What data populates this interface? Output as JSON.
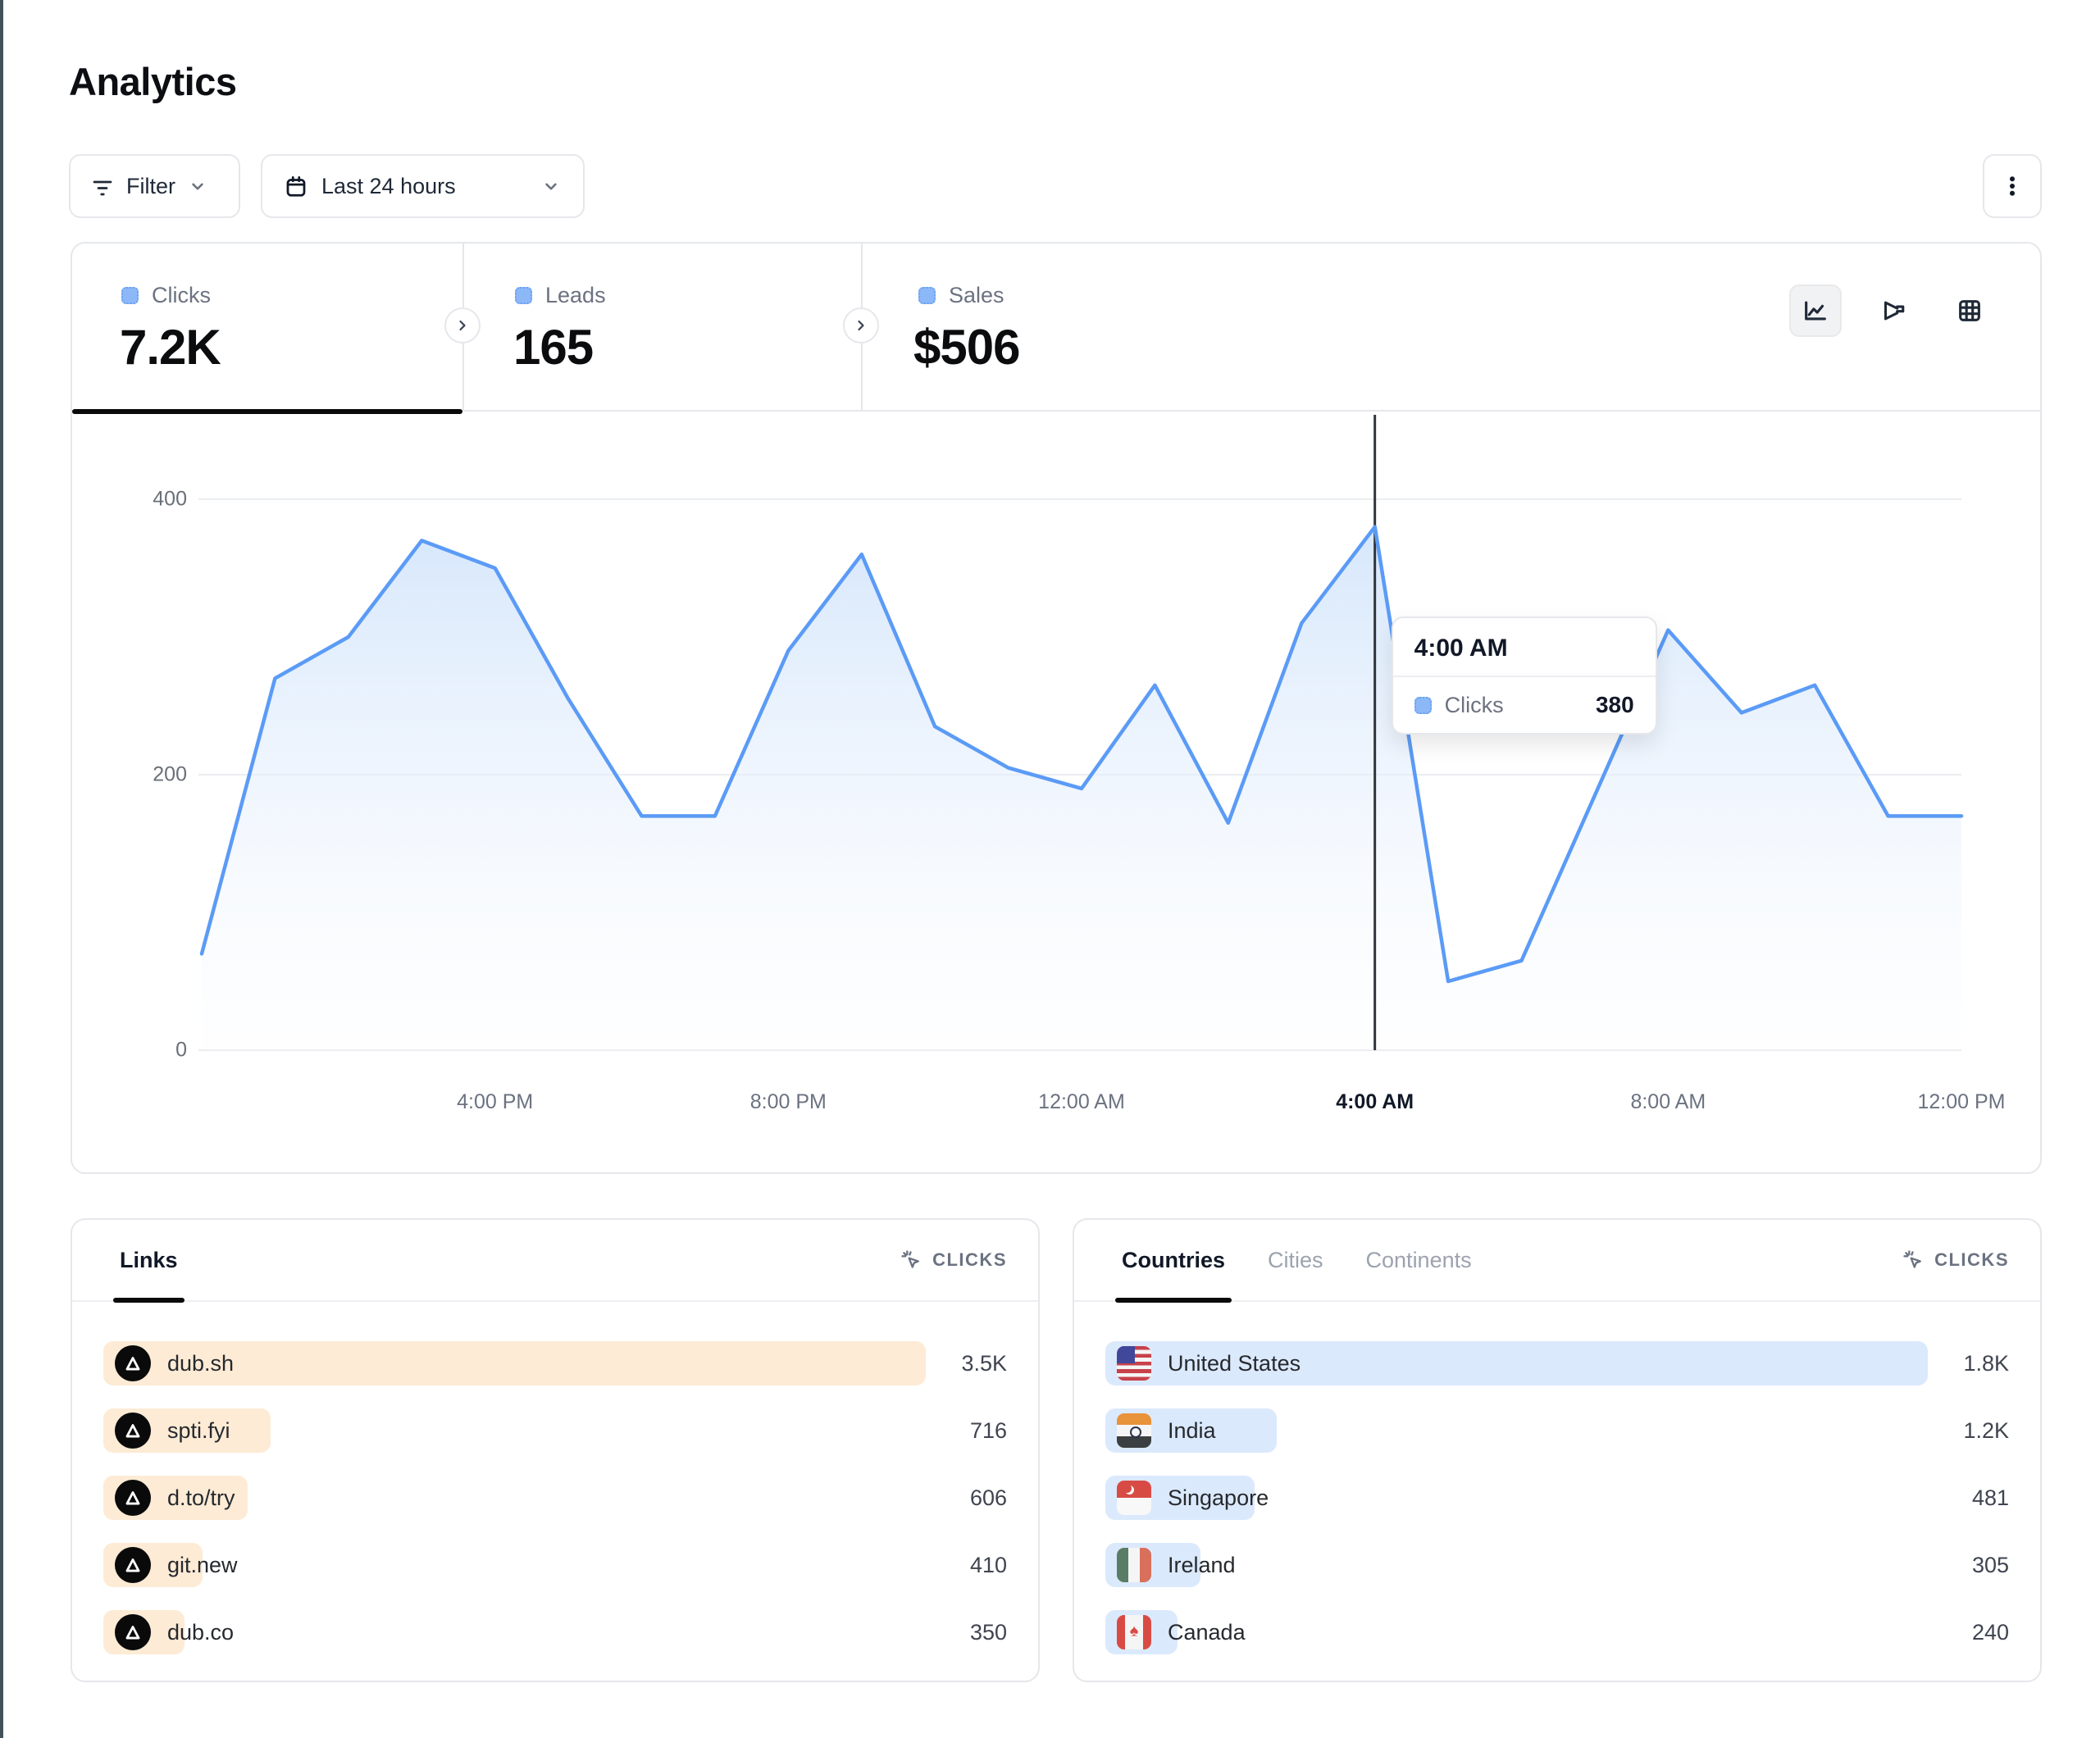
{
  "page": {
    "title": "Analytics"
  },
  "toolbar": {
    "filter_label": "Filter",
    "date_range_label": "Last 24 hours"
  },
  "stats": {
    "tabs": [
      {
        "label": "Clicks",
        "value": "7.2K",
        "active": true
      },
      {
        "label": "Leads",
        "value": "165",
        "active": false
      },
      {
        "label": "Sales",
        "value": "$506",
        "active": false
      }
    ]
  },
  "chart_data": {
    "type": "area",
    "series_name": "Clicks",
    "x": [
      "12:00 PM",
      "1:00 PM",
      "2:00 PM",
      "3:00 PM",
      "4:00 PM",
      "5:00 PM",
      "6:00 PM",
      "7:00 PM",
      "8:00 PM",
      "9:00 PM",
      "10:00 PM",
      "11:00 PM",
      "12:00 AM",
      "1:00 AM",
      "2:00 AM",
      "3:00 AM",
      "4:00 AM",
      "5:00 AM",
      "6:00 AM",
      "7:00 AM",
      "8:00 AM",
      "9:00 AM",
      "10:00 AM",
      "11:00 AM",
      "12:00 PM"
    ],
    "values": [
      70,
      270,
      300,
      370,
      350,
      255,
      170,
      170,
      290,
      360,
      235,
      205,
      190,
      265,
      165,
      310,
      380,
      50,
      65,
      185,
      305,
      245,
      265,
      170,
      170
    ],
    "x_ticks": [
      "4:00 PM",
      "8:00 PM",
      "12:00 AM",
      "4:00 AM",
      "8:00 AM",
      "12:00 PM"
    ],
    "x_tick_indices": [
      4,
      8,
      12,
      16,
      20,
      24
    ],
    "y_ticks": [
      "400",
      "200",
      "0"
    ],
    "y_tick_values": [
      400,
      200,
      0
    ],
    "ylim": [
      0,
      463
    ],
    "grid": true,
    "legend_position": "none",
    "line_color": "#5b9bf6",
    "area_top_color": "#cfe3fb",
    "grid_color": "#ebedf0",
    "crosshair_color": "#30343c",
    "hover": {
      "index": 16,
      "x_label": "4:00 AM",
      "series": "Clicks",
      "value": 380
    }
  },
  "tooltip": {
    "time": "4:00 AM",
    "series_label": "Clicks",
    "value": "380"
  },
  "links_panel": {
    "tab_label": "Links",
    "metric_label": "CLICKS",
    "rows": [
      {
        "label": "dub.sh",
        "value": "3.5K",
        "bar_pct": 91
      },
      {
        "label": "spti.fyi",
        "value": "716",
        "bar_pct": 18.5
      },
      {
        "label": "d.to/try",
        "value": "606",
        "bar_pct": 16
      },
      {
        "label": "git.new",
        "value": "410",
        "bar_pct": 11
      },
      {
        "label": "dub.co",
        "value": "350",
        "bar_pct": 9
      }
    ]
  },
  "countries_panel": {
    "tabs": [
      {
        "label": "Countries",
        "active": true
      },
      {
        "label": "Cities",
        "active": false
      },
      {
        "label": "Continents",
        "active": false
      }
    ],
    "metric_label": "CLICKS",
    "rows": [
      {
        "label": "United States",
        "value": "1.8K",
        "bar_pct": 91,
        "flag": "us"
      },
      {
        "label": "India",
        "value": "1.2K",
        "bar_pct": 19,
        "flag": "in"
      },
      {
        "label": "Singapore",
        "value": "481",
        "bar_pct": 16.5,
        "flag": "sg"
      },
      {
        "label": "Ireland",
        "value": "305",
        "bar_pct": 10.5,
        "flag": "ie"
      },
      {
        "label": "Canada",
        "value": "240",
        "bar_pct": 8,
        "flag": "ca"
      }
    ]
  },
  "colors": {
    "accent_blue": "#5b9bf6",
    "links_bar": "#fdebd5",
    "countries_bar": "#dbe9fc",
    "active_black": "#0a0a0a",
    "border": "#e5e7eb",
    "muted_text": "#6b7280"
  }
}
